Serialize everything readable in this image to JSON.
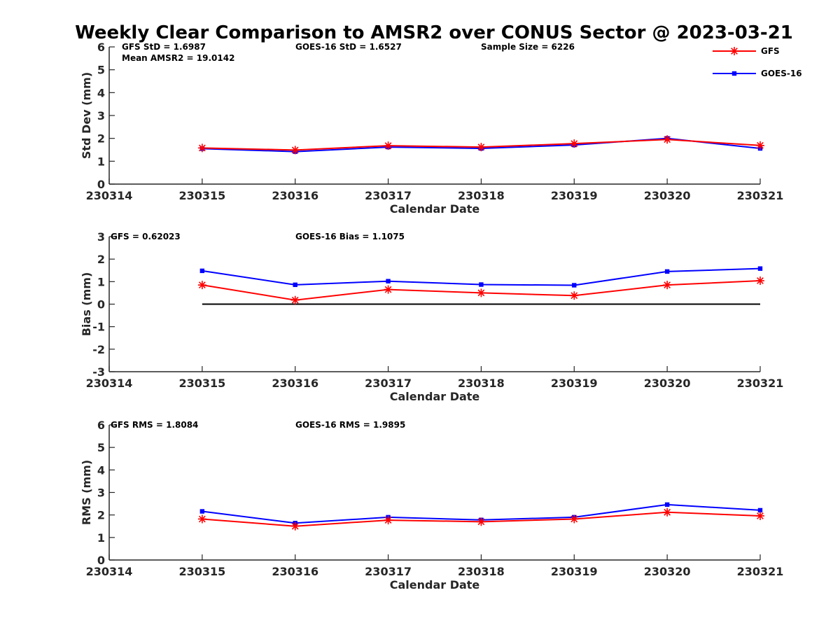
{
  "figure": {
    "title": "Weekly Clear Comparison to AMSR2 over CONUS Sector @ 2023-03-21"
  },
  "legend": {
    "placement": "top-right",
    "entries": [
      {
        "name": "GFS",
        "color": "#ff0000",
        "marker": "star"
      },
      {
        "name": "GOES-16",
        "color": "#0000ff",
        "marker": "square"
      }
    ]
  },
  "chart_data": [
    {
      "type": "line",
      "id": "std",
      "title": "",
      "xlabel": "Calendar Date",
      "ylabel": "Std Dev (mm)",
      "x_ticks": [
        "230314",
        "230315",
        "230316",
        "230317",
        "230318",
        "230319",
        "230320",
        "230321"
      ],
      "x": [
        "230315",
        "230316",
        "230317",
        "230318",
        "230319",
        "230320",
        "230321"
      ],
      "ylim": [
        0,
        6
      ],
      "y_ticks": [
        "0",
        "1",
        "2",
        "3",
        "4",
        "5",
        "6"
      ],
      "grid": false,
      "series": [
        {
          "name": "GFS",
          "values": [
            1.58,
            1.49,
            1.68,
            1.62,
            1.77,
            1.95,
            1.69
          ]
        },
        {
          "name": "GOES-16",
          "values": [
            1.55,
            1.42,
            1.62,
            1.56,
            1.71,
            2.0,
            1.56
          ]
        }
      ],
      "annotations": [
        {
          "key": "a1",
          "text": "GFS StD = 1.6987"
        },
        {
          "key": "a2",
          "text": "Mean AMSR2 = 19.0142"
        },
        {
          "key": "a3",
          "text": "GOES-16 StD = 1.6527"
        },
        {
          "key": "a4",
          "text": "Sample Size = 6226"
        }
      ]
    },
    {
      "type": "line",
      "id": "bias",
      "title": "",
      "xlabel": "Calendar Date",
      "ylabel": "Bias (mm)",
      "x_ticks": [
        "230314",
        "230315",
        "230316",
        "230317",
        "230318",
        "230319",
        "230320",
        "230321"
      ],
      "x": [
        "230315",
        "230316",
        "230317",
        "230318",
        "230319",
        "230320",
        "230321"
      ],
      "ylim": [
        -3,
        3
      ],
      "y_ticks": [
        "-3",
        "-2",
        "-1",
        "0",
        "1",
        "2",
        "3"
      ],
      "grid": false,
      "zero_line": true,
      "series": [
        {
          "name": "GFS",
          "values": [
            0.85,
            0.18,
            0.65,
            0.5,
            0.38,
            0.85,
            1.04
          ]
        },
        {
          "name": "GOES-16",
          "values": [
            1.48,
            0.86,
            1.02,
            0.87,
            0.84,
            1.45,
            1.58
          ]
        }
      ],
      "annotations": [
        {
          "key": "b1",
          "text": "GFS = 0.62023"
        },
        {
          "key": "b2",
          "text": "GOES-16 Bias  = 1.1075"
        }
      ]
    },
    {
      "type": "line",
      "id": "rms",
      "title": "",
      "xlabel": "Calendar Date",
      "ylabel": "RMS (mm)",
      "x_ticks": [
        "230314",
        "230315",
        "230316",
        "230317",
        "230318",
        "230319",
        "230320",
        "230321"
      ],
      "x": [
        "230315",
        "230316",
        "230317",
        "230318",
        "230319",
        "230320",
        "230321"
      ],
      "ylim": [
        0,
        6
      ],
      "y_ticks": [
        "0",
        "1",
        "2",
        "3",
        "4",
        "5",
        "6"
      ],
      "grid": false,
      "series": [
        {
          "name": "GFS",
          "values": [
            1.82,
            1.5,
            1.77,
            1.7,
            1.82,
            2.12,
            1.96
          ]
        },
        {
          "name": "GOES-16",
          "values": [
            2.16,
            1.64,
            1.9,
            1.78,
            1.9,
            2.46,
            2.21
          ]
        }
      ],
      "annotations": [
        {
          "key": "c1",
          "text": "GFS RMS = 1.8084"
        },
        {
          "key": "c2",
          "text": "GOES-16 RMS = 1.9895"
        }
      ]
    }
  ]
}
